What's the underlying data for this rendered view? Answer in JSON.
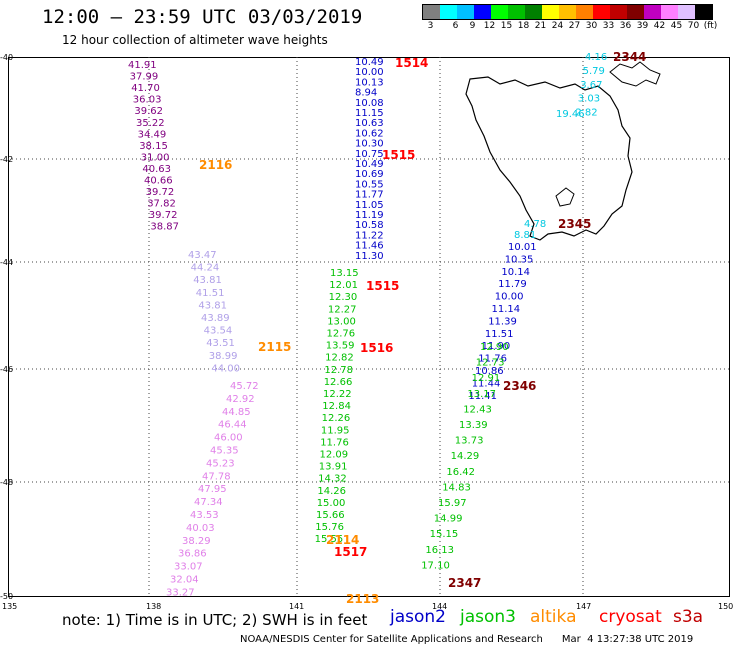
{
  "header": {
    "title": "12:00 – 23:59 UTC 03/03/2019",
    "subtitle": "12 hour collection of altimeter wave heights"
  },
  "color_scale": {
    "labels": [
      "3",
      "6",
      "9",
      "12",
      "15",
      "18",
      "21",
      "24",
      "27",
      "30",
      "33",
      "36",
      "39",
      "42",
      "45",
      "70",
      "(ft)"
    ],
    "colors": [
      "#808080",
      "#00ffff",
      "#00c0ff",
      "#0000ff",
      "#00ff00",
      "#00c000",
      "#008000",
      "#ffff00",
      "#ffc000",
      "#ff8000",
      "#ff0000",
      "#c00000",
      "#800000",
      "#c000c0",
      "#ff80ff",
      "#e0c0ff",
      "#000000"
    ]
  },
  "map": {
    "lat_labels": [
      "-40",
      "-42",
      "-44",
      "-46",
      "-48",
      "-50"
    ],
    "lon_labels": [
      "135",
      "138",
      "141",
      "144",
      "147",
      "150"
    ],
    "landmass": "Tasmania coastline"
  },
  "tracks": [
    {
      "color": "#800080",
      "values": [
        "41.91",
        "37.99",
        "41.70",
        "36.03",
        "39.62",
        "35.22",
        "34.49",
        "38.15",
        "31.00",
        "40.63",
        "40.66",
        "39.72",
        "37.82",
        "39.72",
        "38.87"
      ]
    },
    {
      "color": "#b0a0e8",
      "values": [
        "43.47",
        "44.24",
        "43.81",
        "41.51",
        "43.81",
        "43.89",
        "43.54",
        "43.51",
        "38.99",
        "44.00"
      ]
    },
    {
      "color": "#e080e8",
      "values": [
        "45.72",
        "42.92",
        "44.85",
        "46.44",
        "46.00",
        "45.35",
        "45.23",
        "47.78",
        "47.95",
        "47.34",
        "43.53",
        "40.03",
        "38.29",
        "36.86",
        "33.07",
        "32.04",
        "33.27"
      ]
    },
    {
      "color": "#0000c8",
      "values": [
        "10.49",
        "10.00",
        "10.13",
        "8.94",
        "10.08",
        "11.15",
        "10.63",
        "10.62",
        "10.30",
        "10.75",
        "10.49",
        "10.69",
        "10.55",
        "11.77",
        "11.05",
        "11.19",
        "10.58",
        "11.22",
        "11.46",
        "11.30"
      ]
    },
    {
      "color": "#00c000",
      "values": [
        "13.15",
        "12.01",
        "12.30",
        "12.27",
        "13.00",
        "12.76",
        "13.59",
        "12.82",
        "12.78",
        "12.66",
        "12.22",
        "12.84",
        "12.26",
        "11.95",
        "11.76",
        "12.09",
        "13.91",
        "14.32",
        "14.26",
        "15.00",
        "15.66",
        "15.76",
        "15.55"
      ]
    },
    {
      "color": "#0000c8",
      "values": [
        "10.01",
        "10.35",
        "10.14",
        "11.79",
        "10.00",
        "11.14",
        "11.39",
        "11.51",
        "11.90",
        "11.76",
        "10.86",
        "11.44",
        "11.41"
      ]
    },
    {
      "color": "#00c000",
      "values": [
        "12.90",
        "12.73",
        "12.91",
        "13.17",
        "12.43",
        "13.39",
        "13.73",
        "14.29",
        "16.42",
        "14.83",
        "15.97",
        "14.99",
        "15.15",
        "16.13",
        "17.10"
      ]
    },
    {
      "color": "#00c8e0",
      "values": [
        "4.16",
        "5.79",
        "3.67",
        "3.03",
        "2.82",
        "19.46",
        "4.78",
        "8.81"
      ]
    }
  ],
  "time_labels": [
    "1514",
    "1515",
    "1515",
    "1516",
    "1517",
    "2116",
    "2115",
    "2114",
    "2113",
    "2344",
    "2345",
    "2346",
    "2347"
  ],
  "legend": {
    "note": "note:  1) Time is in UTC;  2) SWH is in feet",
    "items": [
      "jason2",
      "jason3",
      "altika",
      "cryosat",
      "s3a"
    ],
    "colors": [
      "#0000c8",
      "#00c000",
      "#ff8c00",
      "#ff0000",
      "#c00000"
    ]
  },
  "footer": "NOAA/NESDIS Center for Satellite Applications and Research      Mar  4 13:27:38 UTC 2019"
}
